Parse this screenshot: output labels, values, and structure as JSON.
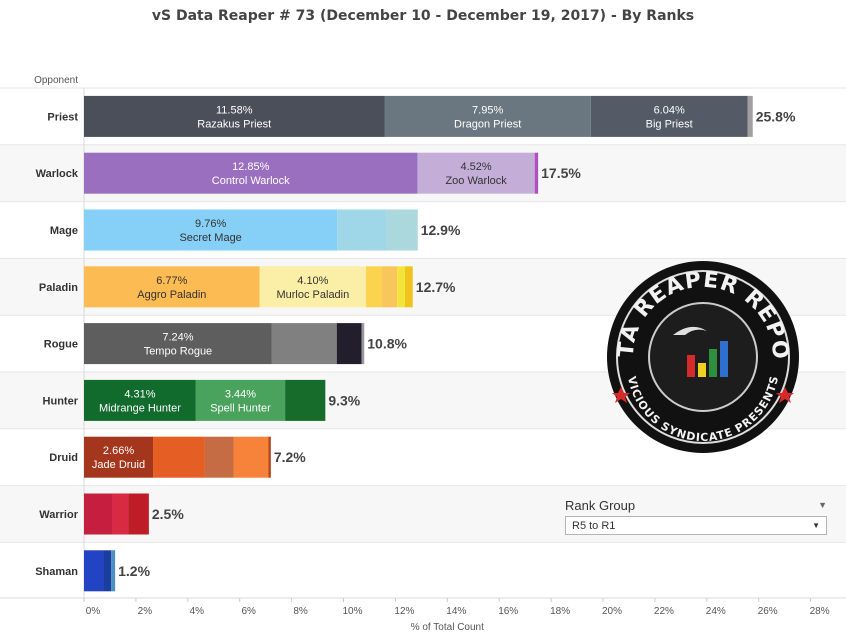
{
  "title": "vS Data Reaper #  73 (December 10 - December 19, 2017) - By Ranks",
  "rank_filter": {
    "label": "Rank Group",
    "value": "R5 to R1"
  },
  "logo": {
    "top": "DATA REAPER REPORT",
    "bottom": "VICIOUS SYNDICATE PRESENTS"
  },
  "chart_data": {
    "type": "bar",
    "orientation": "horizontal",
    "stacked": true,
    "title": "vS Data Reaper #  73 (December 10 - December 19, 2017) - By Ranks",
    "row_axis_title": "Opponent",
    "xlabel": "% of Total Count",
    "xlim": [
      0,
      28
    ],
    "xticks": [
      "0%",
      "2%",
      "4%",
      "6%",
      "8%",
      "10%",
      "12%",
      "14%",
      "16%",
      "18%",
      "20%",
      "22%",
      "24%",
      "26%",
      "28%"
    ],
    "rows": [
      {
        "class": "Priest",
        "total_label": "25.8%",
        "segments": [
          {
            "value": 11.58,
            "label": "11.58%",
            "name": "Razakus Priest",
            "color": "#4b4f5a"
          },
          {
            "value": 7.95,
            "label": "7.95%",
            "name": "Dragon Priest",
            "color": "#6b7780"
          },
          {
            "value": 6.04,
            "label": "6.04%",
            "name": "Big Priest",
            "color": "#545b66"
          },
          {
            "value": 0.2,
            "color": "#a0a0a0"
          }
        ]
      },
      {
        "class": "Warlock",
        "total_label": "17.5%",
        "segments": [
          {
            "value": 12.85,
            "label": "12.85%",
            "name": "Control Warlock",
            "color": "#9b6fc0"
          },
          {
            "value": 4.52,
            "label": "4.52%",
            "name": "Zoo Warlock",
            "color": "#c4aed8"
          },
          {
            "value": 0.13,
            "color": "#b04fbf"
          }
        ]
      },
      {
        "class": "Mage",
        "total_label": "12.9%",
        "segments": [
          {
            "value": 9.76,
            "label": "9.76%",
            "name": "Secret Mage",
            "color": "#86cff6"
          },
          {
            "value": 1.9,
            "color": "#9fd6e8"
          },
          {
            "value": 1.2,
            "color": "#abd8dd"
          }
        ]
      },
      {
        "class": "Paladin",
        "total_label": "12.7%",
        "segments": [
          {
            "value": 6.77,
            "label": "6.77%",
            "name": "Aggro Paladin",
            "color": "#fdbb53"
          },
          {
            "value": 4.1,
            "label": "4.10%",
            "name": "Murloc Paladin",
            "color": "#fbeea6"
          },
          {
            "value": 0.6,
            "color": "#fcd34d"
          },
          {
            "value": 0.6,
            "color": "#f8c65a"
          },
          {
            "value": 0.3,
            "color": "#f2e43a"
          },
          {
            "value": 0.3,
            "color": "#f0c41e"
          }
        ]
      },
      {
        "class": "Rogue",
        "total_label": "10.8%",
        "segments": [
          {
            "value": 7.24,
            "label": "7.24%",
            "name": "Tempo Rogue",
            "color": "#5e5e5e"
          },
          {
            "value": 2.5,
            "color": "#808080"
          },
          {
            "value": 0.96,
            "color": "#221e2b"
          },
          {
            "value": 0.1,
            "color": "#999999"
          }
        ]
      },
      {
        "class": "Hunter",
        "total_label": "9.3%",
        "segments": [
          {
            "value": 4.31,
            "label": "4.31%",
            "name": "Midrange Hunter",
            "color": "#106b2c"
          },
          {
            "value": 3.44,
            "label": "3.44%",
            "name": "Spell Hunter",
            "color": "#4aa35c"
          },
          {
            "value": 1.55,
            "color": "#176c2c"
          }
        ]
      },
      {
        "class": "Druid",
        "total_label": "7.2%",
        "segments": [
          {
            "value": 2.66,
            "label": "2.66%",
            "name": "Jade Druid",
            "color": "#a3361c"
          },
          {
            "value": 2.0,
            "color": "#e55e24"
          },
          {
            "value": 1.1,
            "color": "#c56c45"
          },
          {
            "value": 1.35,
            "color": "#f7823a"
          },
          {
            "value": 0.09,
            "color": "#b54419"
          }
        ]
      },
      {
        "class": "Warrior",
        "total_label": "2.5%",
        "segments": [
          {
            "value": 1.1,
            "color": "#c51f3f"
          },
          {
            "value": 0.6,
            "color": "#d82a43"
          },
          {
            "value": 0.8,
            "color": "#be1d27"
          }
        ]
      },
      {
        "class": "Shaman",
        "total_label": "1.2%",
        "segments": [
          {
            "value": 0.75,
            "color": "#2243c4"
          },
          {
            "value": 0.3,
            "color": "#1a3d9e"
          },
          {
            "value": 0.15,
            "color": "#4a90c0"
          }
        ]
      }
    ],
    "grid": false,
    "row_bands": true,
    "legend": "none"
  }
}
